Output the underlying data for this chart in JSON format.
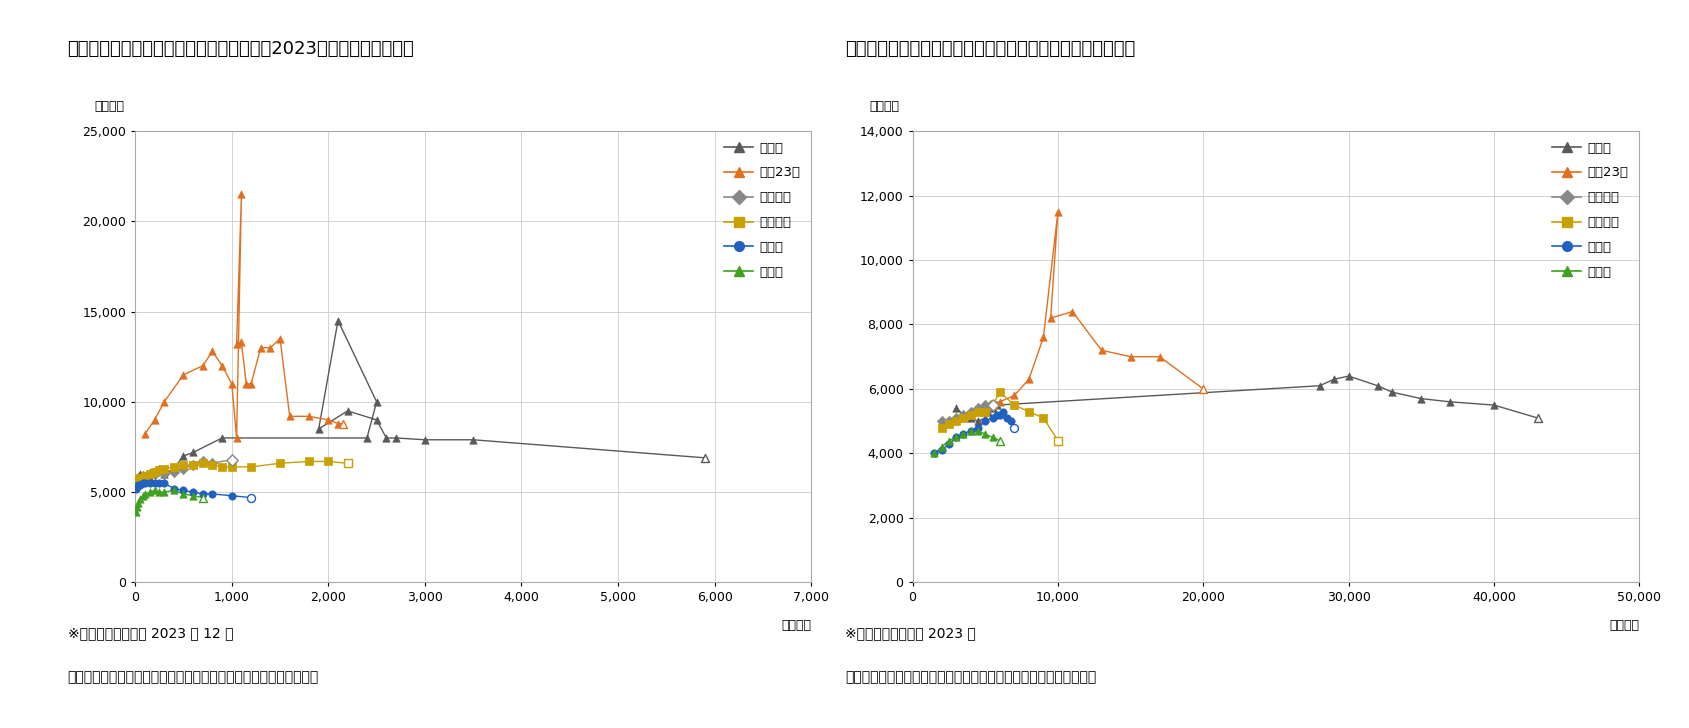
{
  "chart1": {
    "title": "図表３　首都圈新築マンション平均価格（2023年月次・エリア別）",
    "xlabel": "（万戸）",
    "ylabel": "（万円）",
    "xlim": [
      0,
      7000
    ],
    "ylim": [
      0,
      25000
    ],
    "xticks": [
      0,
      1000,
      2000,
      3000,
      4000,
      5000,
      6000,
      7000
    ],
    "yticks": [
      0,
      5000,
      10000,
      15000,
      20000,
      25000
    ],
    "note1": "※各項目の白抜きは 2023 年 12 月",
    "note2": "（資料）不動産経済研究所の公表を基にニッセイ基礎研究所が作成"
  },
  "chart2": {
    "title": "図表４　首都圈新築マンション平均価格（年次・エリア別）",
    "xlabel": "（万戸）",
    "ylabel": "（万円）",
    "xlim": [
      0,
      50000
    ],
    "ylim": [
      0,
      14000
    ],
    "xticks": [
      0,
      10000,
      20000,
      30000,
      40000,
      50000
    ],
    "yticks": [
      0,
      2000,
      4000,
      6000,
      8000,
      10000,
      12000,
      14000
    ],
    "note1": "※各項目の白抜きは 2023 年",
    "note2": "（資料）不動産経済研究所の公表を基にニッセイ基礎研究所が作成"
  },
  "series_names": [
    "首都圈",
    "東京23区",
    "東京都下",
    "神奈川県",
    "埼玉県",
    "千葉県"
  ],
  "series_colors": [
    "#595959",
    "#e07020",
    "#888888",
    "#c8a000",
    "#2060c0",
    "#40a020"
  ],
  "series_markers": [
    "^",
    "^",
    "D",
    "s",
    "o",
    "^"
  ],
  "chart1_data": {
    "首都圈": {
      "x": [
        50,
        100,
        150,
        200,
        250,
        300,
        400,
        500,
        600,
        900,
        2400,
        2500,
        2100,
        1900,
        2200,
        2500,
        2600,
        2700,
        3000,
        3500,
        5900
      ],
      "y": [
        6000,
        5900,
        5800,
        6100,
        6200,
        6000,
        6300,
        7000,
        7200,
        8000,
        8000,
        10000,
        14500,
        8500,
        9500,
        9000,
        8000,
        8000,
        7900,
        7900,
        6900
      ]
    },
    "東京23区": {
      "x": [
        100,
        200,
        300,
        500,
        700,
        800,
        900,
        1000,
        1050,
        1100,
        1050,
        1100,
        1150,
        1200,
        1300,
        1400,
        1500,
        1600,
        1800,
        2000,
        2100,
        2150
      ],
      "y": [
        8200,
        9000,
        10000,
        11500,
        12000,
        12800,
        12000,
        11000,
        8000,
        21500,
        13200,
        13300,
        11000,
        11000,
        13000,
        13000,
        13500,
        9200,
        9200,
        9000,
        8800,
        8800
      ]
    },
    "東京都下": {
      "x": [
        20,
        30,
        50,
        80,
        100,
        150,
        200,
        250,
        300,
        400,
        500,
        600,
        700,
        800,
        1000
      ],
      "y": [
        5600,
        5800,
        5700,
        5900,
        5800,
        6000,
        6000,
        6200,
        6000,
        6100,
        6300,
        6500,
        6700,
        6600,
        6800
      ]
    },
    "神奈川県": {
      "x": [
        10,
        20,
        30,
        50,
        80,
        100,
        150,
        200,
        250,
        300,
        400,
        500,
        600,
        700,
        800,
        900,
        1000,
        1200,
        1500,
        1800,
        2000,
        2200
      ],
      "y": [
        5500,
        5600,
        5700,
        5800,
        5800,
        5900,
        6000,
        6100,
        6200,
        6300,
        6400,
        6500,
        6500,
        6600,
        6500,
        6400,
        6400,
        6400,
        6600,
        6700,
        6700,
        6600
      ]
    },
    "埼玉県": {
      "x": [
        10,
        20,
        30,
        50,
        80,
        100,
        150,
        200,
        250,
        300,
        400,
        500,
        600,
        700,
        800,
        1000,
        1200
      ],
      "y": [
        5200,
        5300,
        5400,
        5400,
        5500,
        5500,
        5500,
        5500,
        5500,
        5500,
        5200,
        5100,
        5000,
        4900,
        4900,
        4800,
        4700
      ]
    },
    "千葉県": {
      "x": [
        10,
        20,
        30,
        50,
        80,
        100,
        150,
        200,
        250,
        300,
        400,
        500,
        600,
        700
      ],
      "y": [
        3900,
        4200,
        4400,
        4600,
        4800,
        4900,
        5000,
        5100,
        5000,
        5000,
        5100,
        4900,
        4800,
        4700
      ]
    }
  },
  "chart2_data": {
    "首都圈": {
      "x": [
        3000,
        3500,
        4000,
        4500,
        5000,
        5200,
        5500,
        5800,
        28000,
        29000,
        30000,
        32000,
        33000,
        35000,
        37000,
        40000,
        43000
      ],
      "y": [
        5400,
        5200,
        5100,
        5000,
        5100,
        5300,
        5400,
        5500,
        6100,
        6300,
        6400,
        6100,
        5900,
        5700,
        5600,
        5500,
        5100
      ]
    },
    "東京23区": {
      "x": [
        3000,
        4000,
        5000,
        6000,
        7000,
        8000,
        9000,
        10000,
        9500,
        11000,
        13000,
        15000,
        17000,
        20000
      ],
      "y": [
        5100,
        5300,
        5500,
        5600,
        5800,
        6300,
        7600,
        11500,
        8200,
        8400,
        7200,
        7000,
        7000,
        6000
      ]
    },
    "東京都下": {
      "x": [
        2000,
        2500,
        3000,
        3500,
        4000,
        4500,
        5000,
        5200,
        5400,
        5500
      ],
      "y": [
        5000,
        5000,
        5100,
        5200,
        5300,
        5400,
        5500,
        5400,
        5500,
        5500
      ]
    },
    "神奈川県": {
      "x": [
        2000,
        2500,
        3000,
        3500,
        4000,
        4500,
        5000,
        5500,
        6000,
        7000,
        8000,
        9000,
        10000
      ],
      "y": [
        4800,
        4900,
        5000,
        5100,
        5200,
        5300,
        5300,
        5500,
        5900,
        5500,
        5300,
        5100,
        4400
      ]
    },
    "埼玉県": {
      "x": [
        1500,
        2000,
        2500,
        3000,
        3500,
        4000,
        4500,
        5000,
        5500,
        5800,
        6000,
        6200,
        6500,
        6800,
        7000
      ],
      "y": [
        4000,
        4100,
        4300,
        4500,
        4600,
        4700,
        4800,
        5000,
        5100,
        5200,
        5200,
        5300,
        5100,
        5000,
        4800
      ]
    },
    "千葉県": {
      "x": [
        1500,
        2000,
        2500,
        3000,
        3500,
        4000,
        4500,
        5000,
        5500,
        6000
      ],
      "y": [
        4000,
        4200,
        4400,
        4500,
        4600,
        4700,
        4700,
        4600,
        4500,
        4400
      ]
    }
  }
}
